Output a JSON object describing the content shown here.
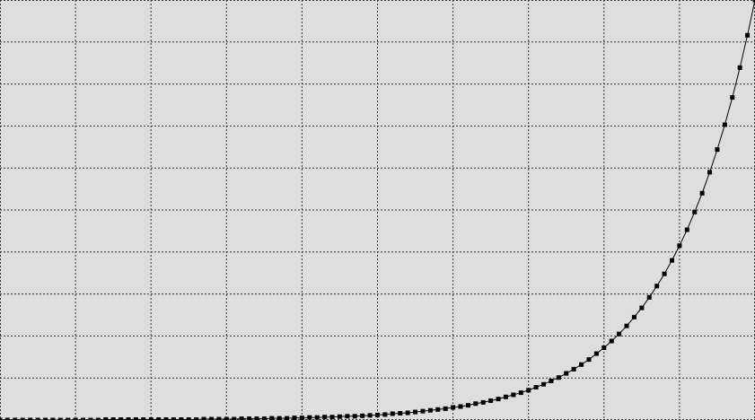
{
  "chart_data": {
    "type": "line",
    "grid": true,
    "color": "#000000",
    "background": "#dedede",
    "grid_color": "#333333",
    "xlim": [
      0,
      10
    ],
    "ylim": [
      0,
      10
    ],
    "xticks": [
      0,
      1,
      2,
      3,
      4,
      5,
      6,
      7,
      8,
      9,
      10
    ],
    "yticks": [
      0,
      1,
      2,
      3,
      4,
      5,
      6,
      7,
      8,
      9,
      10
    ],
    "x": [
      0,
      0.1,
      0.2,
      0.3,
      0.4,
      0.5,
      0.6,
      0.7,
      0.8,
      0.9,
      1,
      1.1,
      1.2,
      1.3,
      1.4,
      1.5,
      1.6,
      1.7,
      1.8,
      1.9,
      2,
      2.1,
      2.2,
      2.3,
      2.4,
      2.5,
      2.6,
      2.7,
      2.8,
      2.9,
      3,
      3.1,
      3.2,
      3.3,
      3.4,
      3.5,
      3.6,
      3.7,
      3.8,
      3.9,
      4,
      4.1,
      4.2,
      4.3,
      4.4,
      4.5,
      4.6,
      4.7,
      4.8,
      4.9,
      5,
      5.1,
      5.2,
      5.3,
      5.4,
      5.5,
      5.6,
      5.7,
      5.8,
      5.9,
      6,
      6.1,
      6.2,
      6.3,
      6.4,
      6.5,
      6.6,
      6.7,
      6.8,
      6.9,
      7,
      7.1,
      7.2,
      7.3,
      7.4,
      7.5,
      7.6,
      7.7,
      7.8,
      7.9,
      8,
      8.1,
      8.2,
      8.3,
      8.4,
      8.5,
      8.6,
      8.7,
      8.8,
      8.9,
      9,
      9.1,
      9.2,
      9.3,
      9.4,
      9.5,
      9.6,
      9.7,
      9.8,
      9.9,
      10
    ],
    "values": [
      0,
      0,
      0,
      0,
      0,
      0,
      0,
      0,
      0,
      0,
      0,
      0,
      0,
      0,
      0.01,
      0.01,
      0.01,
      0.01,
      0.01,
      0.01,
      0.01,
      0.01,
      0.01,
      0.01,
      0.01,
      0.01,
      0.01,
      0.02,
      0.02,
      0.02,
      0.02,
      0.02,
      0.03,
      0.03,
      0.03,
      0.03,
      0.04,
      0.04,
      0.04,
      0.05,
      0.05,
      0.06,
      0.06,
      0.07,
      0.07,
      0.08,
      0.09,
      0.09,
      0.1,
      0.11,
      0.12,
      0.13,
      0.15,
      0.16,
      0.17,
      0.19,
      0.21,
      0.23,
      0.25,
      0.27,
      0.3,
      0.32,
      0.35,
      0.39,
      0.42,
      0.46,
      0.5,
      0.55,
      0.6,
      0.65,
      0.71,
      0.78,
      0.85,
      0.93,
      1.01,
      1.11,
      1.21,
      1.32,
      1.44,
      1.58,
      1.72,
      1.88,
      2.05,
      2.24,
      2.45,
      2.67,
      2.92,
      3.19,
      3.48,
      3.8,
      4.15,
      4.53,
      4.95,
      5.4,
      5.9,
      6.44,
      7.03,
      7.68,
      8.39,
      9.16,
      10
    ]
  }
}
